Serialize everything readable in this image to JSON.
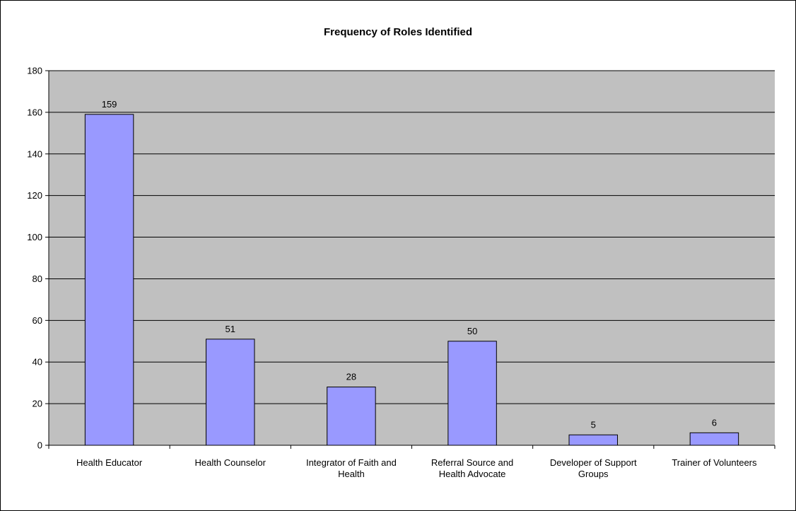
{
  "chart_data": {
    "type": "bar",
    "title": "Frequency of Roles Identified",
    "categories": [
      [
        "Health Educator"
      ],
      [
        "Health Counselor"
      ],
      [
        "Integrator of Faith and",
        "Health"
      ],
      [
        "Referral Source and",
        "Health Advocate"
      ],
      [
        "Developer of Support",
        "Groups"
      ],
      [
        "Trainer of Volunteers"
      ]
    ],
    "values": [
      159,
      51,
      28,
      50,
      5,
      6
    ],
    "data_labels": [
      "159",
      "51",
      "28",
      "50",
      "5",
      "6"
    ],
    "ylim": [
      0,
      180
    ],
    "yticks": [
      0,
      20,
      40,
      60,
      80,
      100,
      120,
      140,
      160,
      180
    ],
    "xlabel": "",
    "ylabel": "",
    "grid": true,
    "legend": false,
    "colors": {
      "plot_background": "#c0c0c0",
      "bar_fill": "#9999ff",
      "bar_stroke": "#000000",
      "gridline": "#000000"
    }
  }
}
